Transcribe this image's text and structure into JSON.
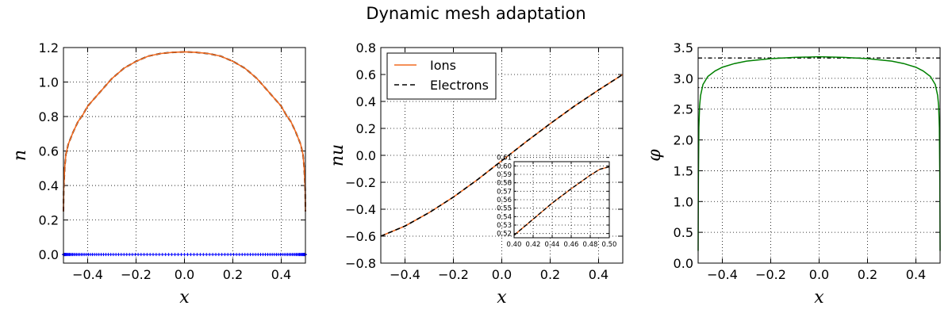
{
  "title": "Dynamic mesh adaptation",
  "colors": {
    "ions": "#f26b21",
    "electrons": "#000000",
    "phi": "#008000",
    "mesh": "#0000ff",
    "grid": "#000000"
  },
  "chart_data": [
    {
      "type": "line",
      "xlabel": "x",
      "ylabel": "n",
      "xlim": [
        -0.5,
        0.5
      ],
      "ylim": [
        -0.05,
        1.2
      ],
      "xticks": [
        "-0.4",
        "-0.2",
        "0.0",
        "0.2",
        "0.4"
      ],
      "yticks": [
        "0.0",
        "0.2",
        "0.4",
        "0.6",
        "0.8",
        "1.0",
        "1.2"
      ],
      "grid": true,
      "series": [
        {
          "x": [
            -0.5,
            -0.499,
            -0.495,
            -0.49,
            -0.48,
            -0.46,
            -0.44,
            -0.42,
            -0.4,
            -0.35,
            -0.3,
            -0.25,
            -0.2,
            -0.15,
            -0.1,
            -0.05,
            0.0,
            0.05,
            0.1,
            0.15,
            0.2,
            0.25,
            0.3,
            0.35,
            0.4,
            0.42,
            0.44,
            0.46,
            0.48,
            0.49,
            0.495,
            0.499,
            0.5
          ],
          "y": [
            0.25,
            0.38,
            0.5,
            0.58,
            0.64,
            0.71,
            0.77,
            0.81,
            0.86,
            0.94,
            1.02,
            1.08,
            1.12,
            1.15,
            1.165,
            1.172,
            1.175,
            1.172,
            1.165,
            1.15,
            1.12,
            1.08,
            1.02,
            0.94,
            0.86,
            0.81,
            0.77,
            0.71,
            0.64,
            0.58,
            0.5,
            0.38,
            0.25
          ]
        }
      ],
      "mesh_points_y": 0.0
    },
    {
      "type": "line",
      "xlabel": "x",
      "ylabel": "nu",
      "xlim": [
        -0.5,
        0.5
      ],
      "ylim": [
        -0.8,
        0.8
      ],
      "xticks": [
        "-0.4",
        "-0.2",
        "0.0",
        "0.2",
        "0.4"
      ],
      "yticks": [
        "-0.8",
        "-0.6",
        "-0.4",
        "-0.2",
        "0.0",
        "0.2",
        "0.4",
        "0.6",
        "0.8"
      ],
      "grid": true,
      "legend": {
        "placement": "top-left",
        "entries": [
          "Ions",
          "Electrons"
        ]
      },
      "series": [
        {
          "name": "Ions",
          "x": [
            -0.5,
            -0.4,
            -0.3,
            -0.2,
            -0.1,
            0.0,
            0.1,
            0.2,
            0.3,
            0.4,
            0.5
          ],
          "y": [
            -0.6,
            -0.525,
            -0.425,
            -0.31,
            -0.18,
            -0.04,
            0.1,
            0.235,
            0.365,
            0.485,
            0.6
          ]
        },
        {
          "name": "Electrons",
          "x": [
            -0.5,
            -0.4,
            -0.3,
            -0.2,
            -0.1,
            0.0,
            0.1,
            0.2,
            0.3,
            0.4,
            0.5
          ],
          "y": [
            -0.6,
            -0.525,
            -0.425,
            -0.31,
            -0.18,
            -0.04,
            0.1,
            0.235,
            0.365,
            0.485,
            0.6
          ]
        }
      ],
      "inset": {
        "xlim": [
          0.4,
          0.5
        ],
        "ylim": [
          0.515,
          0.605
        ],
        "xticks": [
          "0.40",
          "0.42",
          "0.44",
          "0.46",
          "0.48",
          "0.50"
        ],
        "yticks": [
          "0.52",
          "0.53",
          "0.54",
          "0.55",
          "0.56",
          "0.57",
          "0.58",
          "0.59",
          "0.60",
          "0.61"
        ],
        "x": [
          0.4,
          0.42,
          0.44,
          0.46,
          0.48,
          0.49,
          0.5
        ],
        "y": [
          0.518,
          0.537,
          0.556,
          0.573,
          0.589,
          0.596,
          0.599
        ]
      }
    },
    {
      "type": "line",
      "xlabel": "x",
      "ylabel": "φ",
      "xlim": [
        -0.5,
        0.5
      ],
      "ylim": [
        0.0,
        3.5
      ],
      "xticks": [
        "-0.4",
        "-0.2",
        "0.0",
        "0.2",
        "0.4"
      ],
      "yticks": [
        "0.0",
        "0.5",
        "1.0",
        "1.5",
        "2.0",
        "2.5",
        "3.0",
        "3.5"
      ],
      "grid": true,
      "reference_lines_y": [
        3.33,
        2.85
      ],
      "series": [
        {
          "x": [
            -0.5,
            -0.499,
            -0.497,
            -0.494,
            -0.49,
            -0.48,
            -0.46,
            -0.43,
            -0.4,
            -0.35,
            -0.3,
            -0.2,
            -0.1,
            0.0,
            0.1,
            0.2,
            0.3,
            0.35,
            0.4,
            0.43,
            0.46,
            0.48,
            0.49,
            0.494,
            0.497,
            0.499,
            0.5
          ],
          "y": [
            0.2,
            1.3,
            2.2,
            2.55,
            2.72,
            2.9,
            3.03,
            3.12,
            3.18,
            3.24,
            3.28,
            3.32,
            3.34,
            3.35,
            3.34,
            3.32,
            3.28,
            3.24,
            3.18,
            3.12,
            3.03,
            2.9,
            2.72,
            2.55,
            2.2,
            1.3,
            0.2
          ]
        }
      ]
    }
  ]
}
